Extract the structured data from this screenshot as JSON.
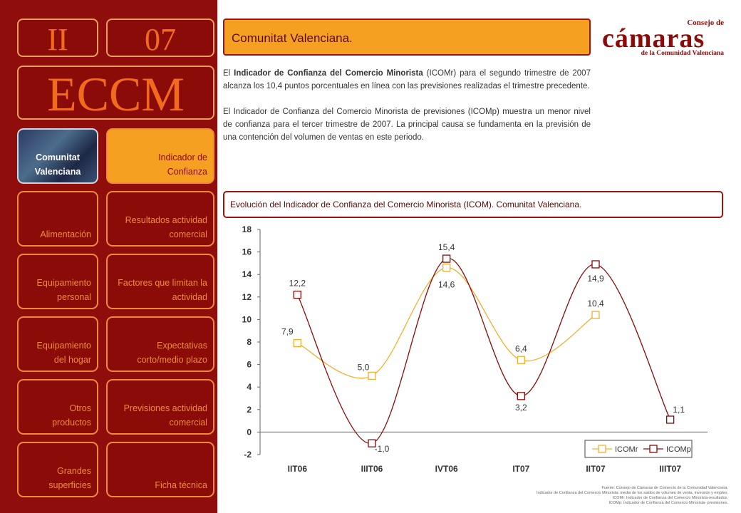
{
  "header": {
    "section": "II",
    "issue": "07",
    "acronym": "ECCM"
  },
  "nav": {
    "region": "Comunitat Valenciana",
    "indicator": "Indicador de Confianza",
    "items": [
      "Alimentación",
      "Resultados actividad comercial",
      "Equipamiento personal",
      "Factores que limitan la actividad",
      "Equipamiento del hogar",
      "Expectativas corto/medio plazo",
      "Otros productos",
      "Previsiones actividad comercial",
      "Grandes superficies",
      "Ficha técnica"
    ]
  },
  "page": {
    "title": "Comunitat Valenciana.",
    "para1_bold": "Indicador de Confianza del Comercio Minorista",
    "para1_pre": "El",
    "para1_post": "(ICOMr) para el segundo trimestre de 2007 alcanza los 10,4 puntos porcentuales en línea con las previsiones realizadas el trimestre precedente.",
    "para2": "El Indicador de Confianza del Comercio Minorista de previsiones (ICOMp) muestra un menor nivel de confianza para el tercer trimestre de 2007. La principal causa se fundamenta en la previsión de una contención del volumen de ventas en este periodo.",
    "chart_title": "Evolución del Indicador de Confianza del Comercio Minorista (ICOM). Comunitat Valenciana."
  },
  "logo": {
    "line1": "Consejo de",
    "line2": "cámaras",
    "line3": "de la Comunidad Valenciana"
  },
  "source": {
    "line1": "Fuente: Consejo de Cámaras de Comercio de la Comunidad Valenciana.",
    "line2": "Indicador de Confianza del Comercio Minorista: media de los saldos de volumen de venta, inversión y empleo.",
    "line3": "ICOMr: Indicador de Confianza del Comercio Minorista-resultados.",
    "line4": "ICOMp: Indicador de Confianza del Comercio Minorista- previsiones."
  },
  "colors": {
    "sidebar": "#8f0d0a",
    "accent": "#f6a021",
    "icomr": "#f0b030",
    "icomp": "#8a0b08"
  },
  "chart_data": {
    "type": "line",
    "categories": [
      "IIT06",
      "IIIT06",
      "IVT06",
      "IT07",
      "IIT07",
      "IIIT07"
    ],
    "ylim": [
      -2,
      18
    ],
    "yticks": [
      -2,
      0,
      2,
      4,
      6,
      8,
      10,
      12,
      14,
      16,
      18
    ],
    "legend_position": "bottom-right",
    "series": [
      {
        "name": "ICOMr",
        "values": [
          7.9,
          5.0,
          14.6,
          6.4,
          10.4,
          null
        ],
        "labels": [
          "7,9",
          "5,0",
          "14,6",
          "6,4",
          "10,4",
          null
        ]
      },
      {
        "name": "ICOMp",
        "values": [
          12.2,
          -1.0,
          15.4,
          3.2,
          14.9,
          1.1
        ],
        "labels": [
          "12,2",
          "-1,0",
          "15,4",
          "3,2",
          "14,9",
          "1,1"
        ]
      }
    ]
  }
}
